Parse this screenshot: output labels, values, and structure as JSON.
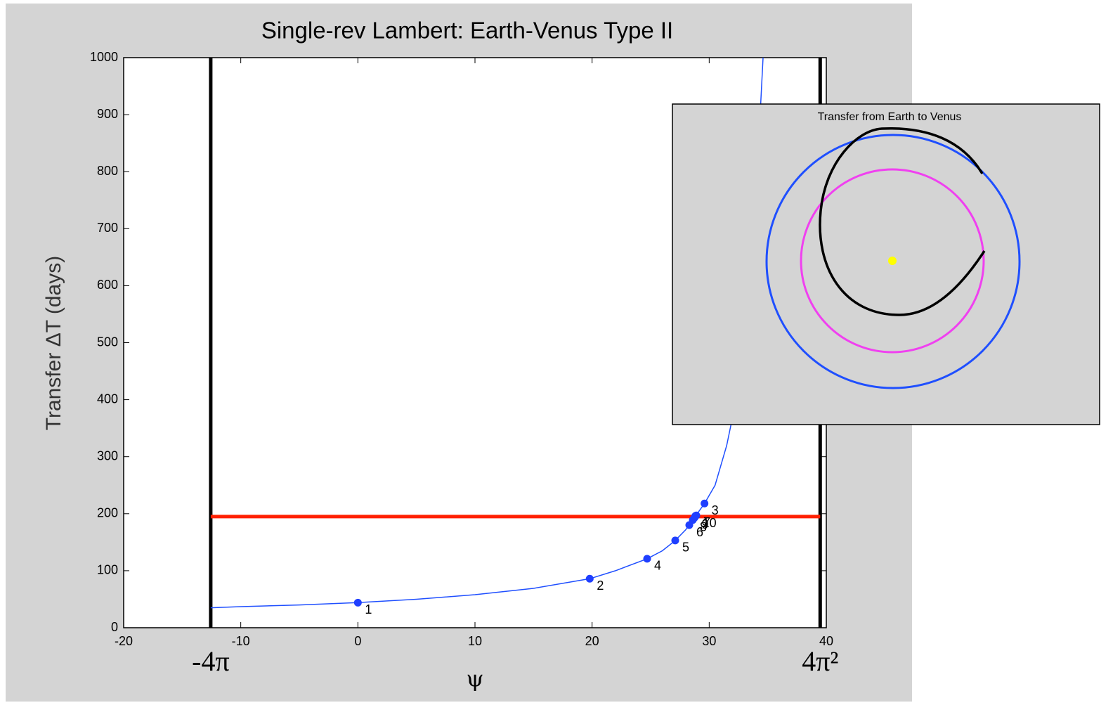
{
  "chart_data": {
    "type": "line",
    "title": "Single-rev Lambert: Earth-Venus Type II",
    "x_label": "ψ",
    "y_label": "Transfer ΔT (days)",
    "xlim": [
      -20,
      40
    ],
    "xticks": [
      -20,
      -10,
      0,
      10,
      20,
      30,
      40
    ],
    "ylim": [
      0,
      1000
    ],
    "yticks": [
      0,
      100,
      200,
      300,
      400,
      500,
      600,
      700,
      800,
      900,
      1000
    ],
    "curve": {
      "color": "#1f4fff",
      "x": [
        -12.566,
        -10,
        -5,
        0,
        5,
        10,
        15,
        19.8,
        22,
        24.7,
        26,
        27.1,
        28,
        28.8,
        29.6,
        30.5,
        31.5,
        32,
        33,
        33.8,
        34.3,
        34.6
      ],
      "y": [
        35,
        37,
        40,
        44,
        50,
        58,
        69,
        86,
        100,
        121,
        135,
        153,
        172,
        195,
        218,
        250,
        320,
        370,
        500,
        700,
        880,
        1000
      ]
    },
    "points": {
      "color": "#1f3fff",
      "x": [
        0,
        19.8,
        29.6,
        24.7,
        27.1,
        28.3,
        28.9,
        28.6,
        28.75,
        28.82
      ],
      "y": [
        44,
        86,
        218,
        121,
        153,
        180,
        197,
        189,
        193,
        196
      ],
      "labels": [
        "1",
        "2",
        "3",
        "4",
        "5",
        "6",
        "7",
        "8",
        "9",
        "10"
      ]
    },
    "vlines": [
      {
        "value": -12.566,
        "label": "-4π"
      },
      {
        "value": 39.478,
        "label": "4π²"
      }
    ],
    "hline": {
      "value": 195,
      "color": "#ff2000"
    }
  },
  "inset": {
    "title": "Transfer from Earth to Venus"
  }
}
